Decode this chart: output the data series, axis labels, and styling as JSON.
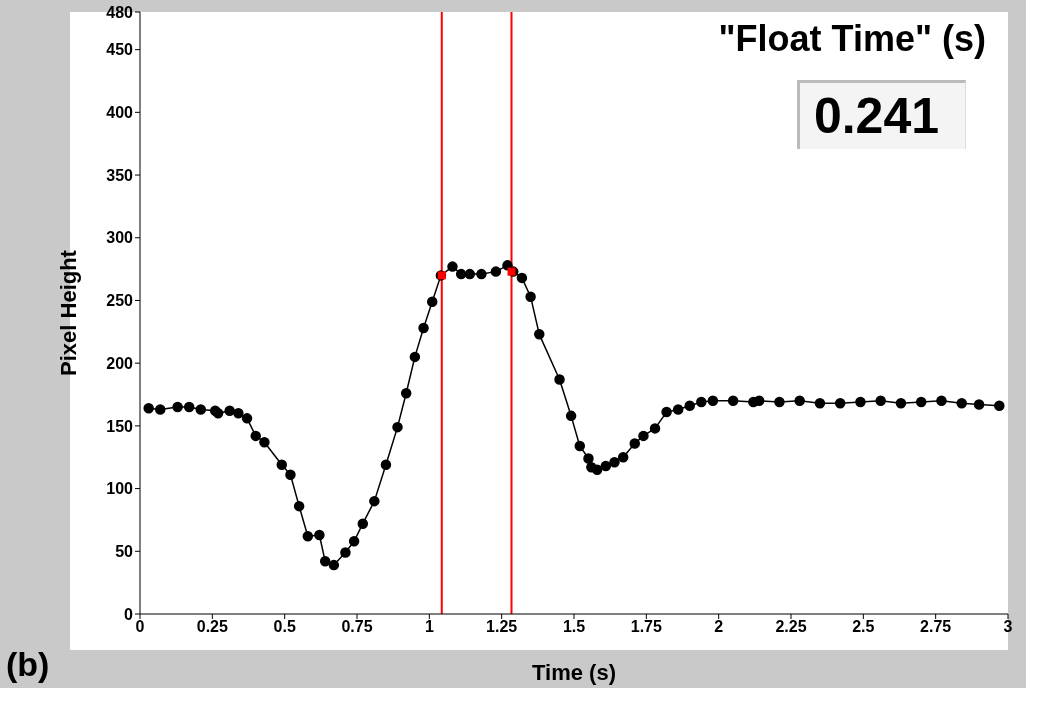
{
  "chart_data": {
    "type": "line",
    "xlabel": "Time (s)",
    "ylabel": "Pixel Height",
    "xlim": [
      0,
      3
    ],
    "xticks": [
      0,
      0.25,
      0.5,
      0.75,
      1,
      1.25,
      1.5,
      1.75,
      2,
      2.25,
      2.5,
      2.75,
      3
    ],
    "ylim": [
      0,
      480
    ],
    "yticks": [
      0,
      50,
      100,
      150,
      200,
      250,
      300,
      350,
      400,
      450,
      480
    ],
    "legend": false,
    "line_style": "solid",
    "series": [
      {
        "color": "#000000",
        "marker": "circle",
        "x": [
          0.03,
          0.07,
          0.13,
          0.17,
          0.21,
          0.26,
          0.27,
          0.31,
          0.34,
          0.37,
          0.4,
          0.43,
          0.49,
          0.52,
          0.55,
          0.58,
          0.62,
          0.64,
          0.67,
          0.71,
          0.74,
          0.77,
          0.81,
          0.85,
          0.89,
          0.92,
          0.95,
          0.98,
          1.01,
          1.04,
          1.08,
          1.11,
          1.14,
          1.18,
          1.23,
          1.27,
          1.29,
          1.32,
          1.35,
          1.38,
          1.45,
          1.49,
          1.52,
          1.55,
          1.56,
          1.58,
          1.61,
          1.64,
          1.67,
          1.71,
          1.74,
          1.78,
          1.82,
          1.86,
          1.9,
          1.94,
          1.98,
          2.05,
          2.12,
          2.14,
          2.21,
          2.28,
          2.35,
          2.42,
          2.49,
          2.56,
          2.63,
          2.7,
          2.77,
          2.84,
          2.9,
          2.97
        ],
        "values": [
          164,
          163,
          165,
          165,
          163,
          162,
          160,
          162,
          160,
          156,
          142,
          137,
          119,
          111,
          86,
          62,
          63,
          42,
          39,
          49,
          58,
          72,
          90,
          119,
          149,
          176,
          205,
          228,
          249,
          270,
          277,
          271,
          271,
          271,
          273,
          278,
          273,
          268,
          253,
          223,
          187,
          158,
          134,
          124,
          117,
          115,
          118,
          121,
          125,
          136,
          142,
          148,
          161,
          163,
          166,
          169,
          170,
          170,
          169,
          170,
          169,
          170,
          168,
          168,
          169,
          170,
          168,
          169,
          170,
          168,
          167,
          166
        ]
      },
      {
        "type": "scatter",
        "color": "#ff0000",
        "marker": "square",
        "x": [
          1.043,
          1.284
        ],
        "values": [
          270,
          273
        ]
      }
    ],
    "ref_lines": [
      {
        "axis": "x",
        "value": 1.043,
        "color": "#ff0000"
      },
      {
        "axis": "x",
        "value": 1.284,
        "color": "#ff0000"
      }
    ],
    "annotations": [
      "(b)",
      "\"Float Time\" (s)",
      "0.241"
    ]
  }
}
